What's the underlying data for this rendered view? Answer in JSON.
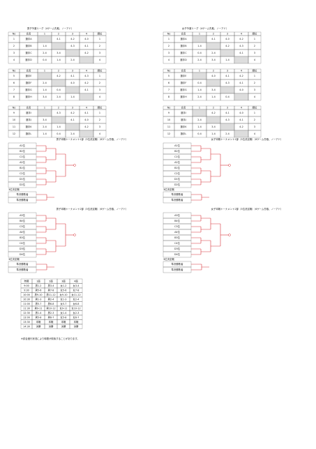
{
  "men_league": {
    "title": "男子予選リーグ（4ゲーム先取、ノーアド）",
    "header": [
      "No",
      "氏名",
      "1",
      "2",
      "3",
      "4",
      "順位"
    ],
    "groups": [
      [
        [
          "1",
          "選手A",
          null,
          "4-1",
          "4-2",
          "4-0",
          "1"
        ],
        [
          "2",
          "選手B",
          "1-4",
          null,
          "4-3",
          "4-1",
          "2"
        ],
        [
          "3",
          "選手C",
          "2-4",
          "3-4",
          null,
          "4-2",
          "3"
        ],
        [
          "4",
          "選手D",
          "0-4",
          "1-4",
          "2-4",
          null,
          "4"
        ]
      ],
      [
        [
          "5",
          "選手E",
          null,
          "4-2",
          "4-1",
          "4-3",
          "1"
        ],
        [
          "6",
          "選手F",
          "2-4",
          null,
          "4-0",
          "4-2",
          "2"
        ],
        [
          "7",
          "選手G",
          "1-4",
          "0-4",
          null,
          "4-1",
          "3"
        ],
        [
          "8",
          "選手H",
          "3-4",
          "2-4",
          "1-4",
          null,
          "4"
        ]
      ],
      [
        [
          "9",
          "選手I",
          null,
          "4-3",
          "4-2",
          "4-1",
          "1"
        ],
        [
          "10",
          "選手J",
          "3-4",
          null,
          "4-1",
          "4-0",
          "2"
        ],
        [
          "11",
          "選手K",
          "2-4",
          "1-4",
          null,
          "4-2",
          "3"
        ],
        [
          "12",
          "選手L",
          "1-4",
          "0-4",
          "2-4",
          null,
          "4"
        ]
      ]
    ]
  },
  "women_league": {
    "title": "女子予選リーグ（4ゲーム先取、ノーアド）",
    "header": [
      "No",
      "氏名",
      "1",
      "2",
      "3",
      "4",
      "順位"
    ],
    "groups": [
      [
        [
          "1",
          "選手A",
          null,
          "4-1",
          "4-0",
          "4-2",
          "1"
        ],
        [
          "2",
          "選手B",
          "1-4",
          null,
          "4-2",
          "4-3",
          "2"
        ],
        [
          "3",
          "選手C",
          "0-4",
          "2-4",
          null,
          "4-1",
          "3"
        ],
        [
          "4",
          "選手D",
          "2-4",
          "3-4",
          "1-4",
          null,
          "4"
        ]
      ],
      [
        [
          "5",
          "選手E",
          null,
          "4-0",
          "4-1",
          "4-2",
          "1"
        ],
        [
          "6",
          "選手F",
          "0-4",
          null,
          "4-3",
          "4-1",
          "2"
        ],
        [
          "7",
          "選手G",
          "1-4",
          "3-4",
          null,
          "4-0",
          "3"
        ],
        [
          "8",
          "選手H",
          "2-4",
          "1-4",
          "0-4",
          null,
          "4"
        ]
      ],
      [
        [
          "9",
          "選手I",
          null,
          "4-2",
          "4-1",
          "4-0",
          "1"
        ],
        [
          "10",
          "選手J",
          "2-4",
          null,
          "4-3",
          "4-1",
          "2"
        ],
        [
          "11",
          "選手K",
          "1-4",
          "3-4",
          null,
          "4-2",
          "3"
        ],
        [
          "12",
          "選手L",
          "0-4",
          "1-4",
          "2-4",
          null,
          "4"
        ]
      ]
    ]
  },
  "brackets": [
    {
      "title": "男子本戦トーナメント1部（3位決定戦）（6ゲーム先取、ノーアド）",
      "entries": [
        "A1位",
        "B2位",
        "C1位",
        "A2位",
        "B1位",
        "C2位",
        "D1位",
        "D2位"
      ],
      "third_title": "3位決定戦",
      "third": [
        "準決勝敗者",
        "準決勝敗者"
      ]
    },
    {
      "title": "男子本戦トーナメント2部（3位決定戦）（6ゲーム先取、ノーアド）",
      "entries": [
        "A3位",
        "B4位",
        "C3位",
        "A4位",
        "B3位",
        "C4位",
        "D3位",
        "D4位"
      ],
      "third_title": "3位決定戦",
      "third": [
        "準決勝敗者",
        "準決勝敗者"
      ]
    },
    {
      "title": "女子本戦トーナメント1部（3位決定戦）（6ゲーム先取、ノーアド）",
      "entries": [
        "A1位",
        "B2位",
        "C1位",
        "A2位",
        "B1位",
        "C2位",
        "D1位",
        "D2位"
      ],
      "third_title": "3位決定戦",
      "third": [
        "準決勝敗者",
        "準決勝敗者"
      ]
    },
    {
      "title": "女子本戦トーナメント2部（3位決定戦）（6ゲーム先取、ノーアド）",
      "entries": [
        "A3位",
        "B4位",
        "C3位",
        "A4位",
        "B3位",
        "C4位",
        "D3位",
        "D4位"
      ],
      "third_title": "3位決定戦",
      "third": [
        "準決勝敗者",
        "準決勝敗者"
      ]
    }
  ],
  "schedule": {
    "header": [
      "時間",
      "1面",
      "2面",
      "3面",
      "4面"
    ],
    "rows": [
      [
        "9:00",
        "男1-2",
        "男3-4",
        "女1-2",
        "女3-4"
      ],
      [
        "9:30",
        "男5-6",
        "男7-8",
        "女5-6",
        "女7-8"
      ],
      [
        "10:00",
        "男9-10",
        "男11-12",
        "女9-10",
        "女11-12"
      ],
      [
        "10:30",
        "男1-3",
        "男2-4",
        "女1-3",
        "女2-4"
      ],
      [
        "11:00",
        "男5-7",
        "男6-8",
        "女5-7",
        "女6-8"
      ],
      [
        "11:30",
        "男9-11",
        "男10-12",
        "女9-11",
        "女10-12"
      ],
      [
        "12:30",
        "男1-4",
        "男2-3",
        "女1-4",
        "女2-3"
      ],
      [
        "13:00",
        "男5-8",
        "男6-7",
        "女5-8",
        "女6-7"
      ],
      [
        "13:30",
        "本戦",
        "本戦",
        "本戦",
        "本戦"
      ],
      [
        "14:30",
        "決勝",
        "決勝",
        "決勝",
        "決勝"
      ]
    ]
  },
  "note": "※試合進行状況により時間が前後することがあります。"
}
